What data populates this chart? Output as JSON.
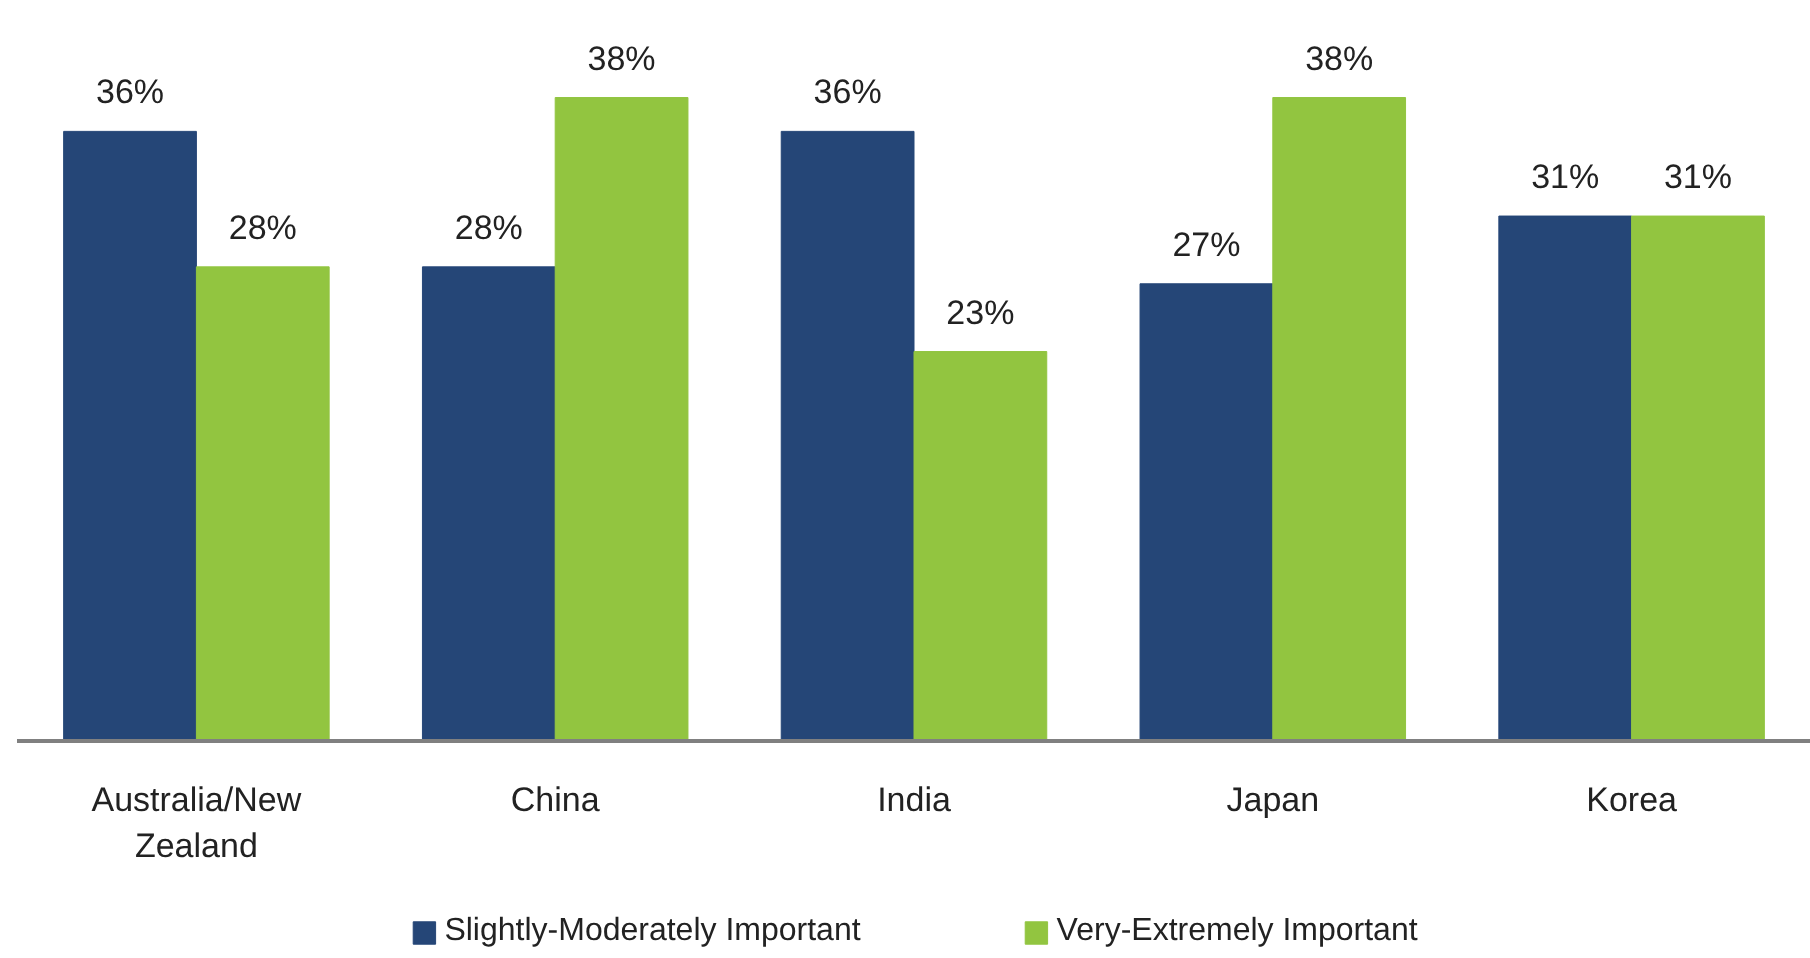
{
  "chart_data": {
    "type": "bar",
    "categories": [
      "Australia/New Zealand",
      "China",
      "India",
      "Japan",
      "Korea"
    ],
    "series": [
      {
        "name": "Slightly-Moderately Important",
        "color": "#254677",
        "values": [
          36,
          28,
          36,
          27,
          31
        ],
        "value_labels": [
          "36%",
          "28%",
          "36%",
          "27%",
          "31%"
        ]
      },
      {
        "name": "Very-Extremely Important",
        "color": "#92c540",
        "values": [
          28,
          38,
          23,
          38,
          31
        ],
        "value_labels": [
          "28%",
          "38%",
          "23%",
          "38%",
          "31%"
        ]
      }
    ],
    "legend": "bottom"
  }
}
